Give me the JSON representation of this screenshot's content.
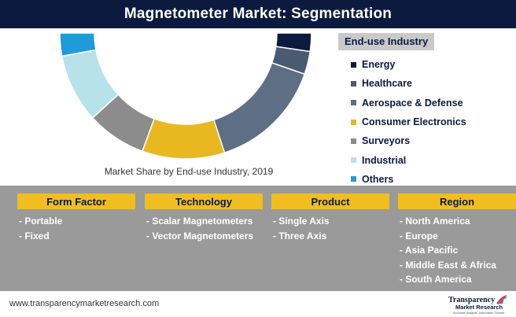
{
  "header": {
    "title": "Magnetometer Market: Segmentation"
  },
  "chart_data": {
    "type": "pie",
    "title": "",
    "caption": "Market Share by End-use Industry, 2019",
    "legend_title": "End-use Industry",
    "legend_position": "right",
    "slices": [
      {
        "label": "Energy",
        "value": 4,
        "color": "#0c1a3f"
      },
      {
        "label": "Healthcare",
        "value": 5,
        "color": "#4a5a70"
      },
      {
        "label": "Aerospace & Defense",
        "value": 25,
        "color": "#5e6e84"
      },
      {
        "label": "Consumer Electronics",
        "value": 18,
        "color": "#e8b820"
      },
      {
        "label": "Surveyors",
        "value": 13,
        "color": "#8c8c8c"
      },
      {
        "label": "Industrial",
        "value": 15,
        "color": "#b7e2ea"
      },
      {
        "label": "Others",
        "value": 5,
        "color": "#1e9bd8"
      }
    ]
  },
  "segments": [
    {
      "title": "Form Factor",
      "items": [
        "- Portable",
        "- Fixed"
      ]
    },
    {
      "title": "Technology",
      "items": [
        "- Scalar Magnetometers",
        "- Vector Magnetometers"
      ]
    },
    {
      "title": "Product",
      "items": [
        "- Single Axis",
        "- Three Axis"
      ]
    },
    {
      "title": "Region",
      "items": [
        "- North America",
        "- Europe",
        "- Asia Pacific",
        "- Middle East & Africa",
        "- South America"
      ]
    }
  ],
  "footer": {
    "url": "www.transparencymarketresearch.com",
    "logo_line1": "Transparency",
    "logo_line2": "Market Research",
    "logo_tagline": "Accurate Insights. Actionable Growth."
  }
}
